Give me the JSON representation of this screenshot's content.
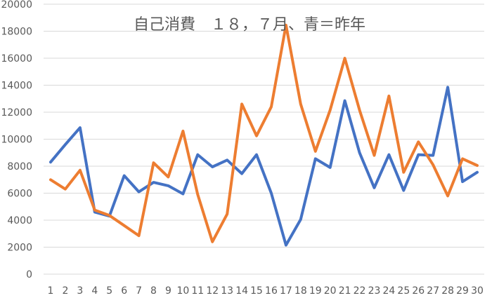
{
  "chart_data": {
    "type": "line",
    "title": "自己消費　１８，７月、青＝昨年",
    "xlabel": "",
    "ylabel": "",
    "x": [
      1,
      2,
      3,
      4,
      5,
      6,
      7,
      8,
      9,
      10,
      11,
      12,
      13,
      14,
      15,
      16,
      17,
      18,
      19,
      20,
      21,
      22,
      23,
      24,
      25,
      26,
      27,
      28,
      29,
      30
    ],
    "ylim": [
      0,
      20000
    ],
    "yticks": [
      0,
      2000,
      4000,
      6000,
      8000,
      10000,
      12000,
      14000,
      16000,
      18000,
      20000
    ],
    "grid": true,
    "legend": "none",
    "series": [
      {
        "color": "#4472C4",
        "values": [
          8300,
          9600,
          10850,
          4600,
          4300,
          7300,
          6100,
          6800,
          6550,
          5950,
          8850,
          7950,
          8450,
          7450,
          8850,
          6000,
          2150,
          4050,
          8550,
          7900,
          12850,
          9000,
          6400,
          8850,
          6200,
          8850,
          8800,
          13850,
          6850,
          7550
        ]
      },
      {
        "color": "#ED7D31",
        "values": [
          7000,
          6300,
          7700,
          4750,
          4350,
          3600,
          2850,
          8250,
          7200,
          10600,
          5900,
          2400,
          4450,
          12600,
          10250,
          12400,
          18450,
          12600,
          9100,
          12150,
          16000,
          12150,
          8800,
          13200,
          7550,
          9800,
          8100,
          5800,
          8550,
          8050
        ]
      }
    ]
  }
}
